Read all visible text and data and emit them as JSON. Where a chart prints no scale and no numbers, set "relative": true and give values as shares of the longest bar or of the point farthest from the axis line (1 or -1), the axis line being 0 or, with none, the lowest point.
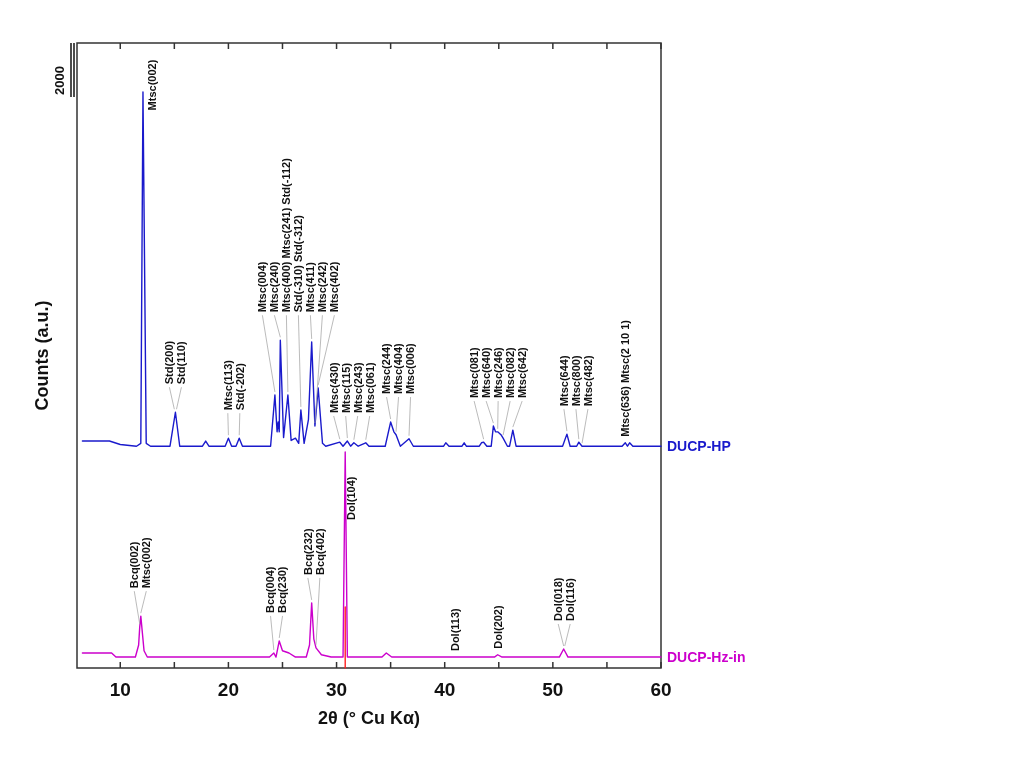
{
  "chart_data": {
    "type": "line",
    "relative": true,
    "xlabel": "2θ (° Cu Kα)",
    "ylabel": "Counts (a.u.)",
    "xlim": [
      6,
      60
    ],
    "xticks": [
      10,
      {
        "value": 15,
        "label": null
      },
      20,
      {
        "value": 25,
        "label": null
      },
      30,
      {
        "value": 35,
        "label": null
      },
      40,
      {
        "value": 45,
        "label": null
      },
      50,
      {
        "value": 55,
        "label": null
      },
      60
    ],
    "series": [
      {
        "name": "DUCP-HP",
        "color": "#1a1acc",
        "x": [
          6.5,
          9,
          10,
          11.5,
          11.9,
          12.1,
          12.4,
          12.8,
          14.6,
          15.1,
          15.5,
          17.6,
          17.9,
          18.2,
          19.7,
          20.0,
          20.3,
          20.7,
          21.0,
          21.3,
          23.9,
          24.3,
          24.5,
          24.6,
          24.7,
          24.8,
          25.1,
          25.5,
          25.8,
          26.2,
          26.5,
          26.7,
          27.0,
          27.4,
          27.7,
          28.0,
          28.3,
          28.7,
          29.0,
          30.3,
          30.6,
          31.0,
          31.3,
          31.6,
          32.0,
          32.7,
          33.0,
          34.5,
          35.0,
          35.3,
          35.5,
          35.9,
          36.7,
          37.1,
          39.9,
          40.1,
          40.4,
          41.6,
          41.8,
          42.0,
          43.2,
          43.4,
          43.6,
          43.9,
          44.3,
          44.5,
          44.7,
          44.9,
          45.2,
          45.4,
          45.8,
          46.0,
          46.3,
          46.6,
          50.9,
          51.3,
          51.6,
          52.2,
          52.4,
          52.7,
          56.4,
          56.7,
          56.9,
          57.1,
          57.4,
          60
        ],
        "values": [
          0.394,
          0.394,
          0.388,
          0.385,
          0.39,
          1.0,
          0.39,
          0.385,
          0.385,
          0.444,
          0.385,
          0.385,
          0.394,
          0.385,
          0.385,
          0.399,
          0.385,
          0.385,
          0.399,
          0.385,
          0.385,
          0.474,
          0.41,
          0.427,
          0.41,
          0.569,
          0.4,
          0.474,
          0.395,
          0.399,
          0.39,
          0.448,
          0.39,
          0.431,
          0.566,
          0.42,
          0.486,
          0.39,
          0.385,
          0.392,
          0.385,
          0.394,
          0.385,
          0.391,
          0.385,
          0.391,
          0.385,
          0.385,
          0.427,
          0.41,
          0.405,
          0.385,
          0.398,
          0.385,
          0.385,
          0.391,
          0.385,
          0.385,
          0.391,
          0.385,
          0.385,
          0.391,
          0.392,
          0.385,
          0.385,
          0.42,
          0.41,
          0.41,
          0.405,
          0.399,
          0.385,
          0.385,
          0.413,
          0.385,
          0.385,
          0.406,
          0.385,
          0.385,
          0.392,
          0.385,
          0.385,
          0.391,
          0.385,
          0.391,
          0.385,
          0.385
        ]
      },
      {
        "name": "DUCP-Hz-in",
        "color": "#cc00cc",
        "x": [
          6.5,
          9.2,
          9.6,
          11.4,
          11.7,
          11.8,
          11.9,
          12.2,
          12.5,
          23.8,
          24.2,
          24.4,
          24.7,
          25.0,
          25.6,
          26.2,
          27.2,
          27.5,
          27.7,
          27.9,
          28.1,
          28.6,
          29.5,
          30.6,
          30.8,
          31.0,
          34.2,
          34.6,
          35.1,
          44.6,
          44.9,
          45.3,
          50.6,
          51.0,
          51.4,
          60
        ],
        "values": [
          0.026,
          0.026,
          0.019,
          0.019,
          0.04,
          0.071,
          0.09,
          0.03,
          0.019,
          0.019,
          0.026,
          0.019,
          0.047,
          0.03,
          0.026,
          0.019,
          0.019,
          0.04,
          0.113,
          0.05,
          0.035,
          0.023,
          0.019,
          0.019,
          0.375,
          0.019,
          0.019,
          0.026,
          0.019,
          0.019,
          0.023,
          0.019,
          0.019,
          0.033,
          0.019,
          0.019
        ]
      },
      {
        "color": "#ff2020",
        "x": [
          30.8,
          30.8
        ],
        "values": [
          0,
          0.106
        ]
      }
    ],
    "annotations": [
      "2000",
      {
        "text": "Mtsc(002)",
        "x": 12.1,
        "y": 1.0
      },
      {
        "text": "Std(200)",
        "x": 15.0,
        "y": 0.444
      },
      {
        "text": "Std(110)",
        "x": 15.2,
        "y": 0.444
      },
      {
        "text": "Mtsc(113)",
        "x": 20.0,
        "y": 0.399
      },
      {
        "text": "Std(-202)",
        "x": 21.0,
        "y": 0.399
      },
      {
        "text": "Mtsc(004)",
        "x": 24.3,
        "y": 0.474
      },
      {
        "text": "Mtsc(240)",
        "x": 24.8,
        "y": 0.569
      },
      {
        "text": "Mtsc(400) Mtsc(241) Std(-112)",
        "x": 25.5,
        "y": 0.474
      },
      {
        "text": "Std(-310) Std(-312)",
        "x": 26.7,
        "y": 0.448
      },
      {
        "text": "Mtsc(411)",
        "x": 27.7,
        "y": 0.566
      },
      {
        "text": "Mtsc(242)",
        "x": 28.0,
        "y": 0.42
      },
      {
        "text": "Mtsc(402)",
        "x": 28.3,
        "y": 0.486
      },
      {
        "text": "Mtsc(430)",
        "x": 30.3,
        "y": 0.392
      },
      {
        "text": "Mtsc(115)",
        "x": 31.0,
        "y": 0.394
      },
      {
        "text": "Mtsc(243)",
        "x": 31.6,
        "y": 0.391
      },
      {
        "text": "Mtsc(061)",
        "x": 32.7,
        "y": 0.391
      },
      {
        "text": "Mtsc(244)",
        "x": 35.0,
        "y": 0.427
      },
      {
        "text": "Mtsc(404)",
        "x": 35.5,
        "y": 0.405
      },
      {
        "text": "Mtsc(006)",
        "x": 36.7,
        "y": 0.398
      },
      {
        "text": "Mtsc(081)",
        "x": 43.6,
        "y": 0.392
      },
      {
        "text": "Mtsc(640)",
        "x": 44.5,
        "y": 0.42
      },
      {
        "text": "Mtsc(246)",
        "x": 44.9,
        "y": 0.41
      },
      {
        "text": "Mtsc(082)",
        "x": 45.4,
        "y": 0.399
      },
      {
        "text": "Mtsc(642)",
        "x": 46.3,
        "y": 0.413
      },
      {
        "text": "Mtsc(644)",
        "x": 51.3,
        "y": 0.406
      },
      {
        "text": "Mtsc(800)",
        "x": 52.4,
        "y": 0.392
      },
      {
        "text": "Mtsc(482)",
        "x": 52.7,
        "y": 0.385
      },
      {
        "text": "Mtsc(636) Mtsc(2 10 1)",
        "x": 56.7,
        "y": 0.391
      },
      {
        "text": "Bcq(002)",
        "x": 11.8,
        "y": 0.071
      },
      {
        "text": "Mtsc(002)",
        "x": 11.9,
        "y": 0.09
      },
      {
        "text": "Bcq(004)",
        "x": 24.2,
        "y": 0.026
      },
      {
        "text": "Bcq(230)",
        "x": 24.7,
        "y": 0.047
      },
      {
        "text": "Bcq(232)",
        "x": 27.7,
        "y": 0.113
      },
      {
        "text": "Bcq(402)",
        "x": 28.1,
        "y": 0.035
      },
      {
        "text": "Dol(104)",
        "x": 30.8,
        "y": 0.257
      },
      {
        "text": "Dol(113)",
        "x": 41.0,
        "y": 0.019
      },
      {
        "text": "Dol(202)",
        "x": 44.9,
        "y": 0.023
      },
      {
        "text": "Dol(018)",
        "x": 51.0,
        "y": 0.033
      },
      {
        "text": "Dol(116)",
        "x": 51.1,
        "y": 0.033
      }
    ]
  }
}
